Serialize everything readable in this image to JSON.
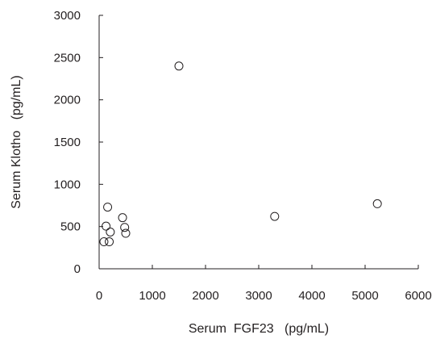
{
  "chart_data": {
    "type": "scatter",
    "title": "",
    "xlabel": "Serum  FGF23   (pg/mL)",
    "ylabel": "Serum Klotho   (pg/mL)",
    "xlim": [
      0,
      6000
    ],
    "ylim": [
      0,
      3000
    ],
    "x_ticks": [
      "0",
      "1000",
      "2000",
      "3000",
      "4000",
      "5000",
      "6000"
    ],
    "y_ticks": [
      "0",
      "500",
      "1000",
      "1500",
      "2000",
      "2500",
      "3000"
    ],
    "grid": false,
    "legend": "none",
    "marker": "open-circle",
    "colors": {
      "ink": "#231f20"
    },
    "series": [
      {
        "points": [
          {
            "x": 1500,
            "y": 2400
          },
          {
            "x": 160,
            "y": 730
          },
          {
            "x": 440,
            "y": 605
          },
          {
            "x": 130,
            "y": 505
          },
          {
            "x": 480,
            "y": 490
          },
          {
            "x": 210,
            "y": 435
          },
          {
            "x": 500,
            "y": 420
          },
          {
            "x": 90,
            "y": 320
          },
          {
            "x": 190,
            "y": 320
          },
          {
            "x": 3300,
            "y": 620
          },
          {
            "x": 5230,
            "y": 770
          }
        ]
      }
    ]
  }
}
